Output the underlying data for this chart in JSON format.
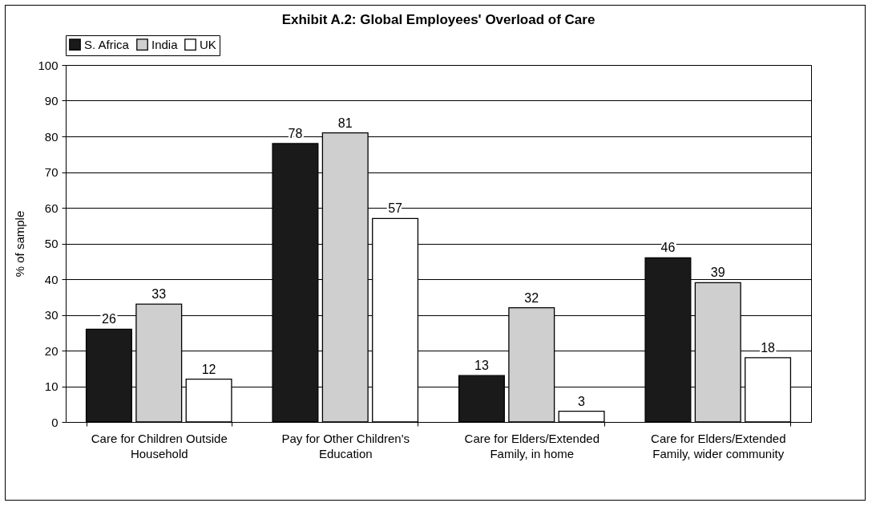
{
  "chart_data": {
    "type": "bar",
    "title": "Exhibit A.2: Global Employees' Overload of Care",
    "ylabel": "% of sample",
    "categories": [
      "Care for Children Outside Household",
      "Pay for Other Children's Education",
      "Care for Elders/Extended Family, in home",
      "Care for Elders/Extended Family, wider community"
    ],
    "series": [
      {
        "name": "S. Africa",
        "color": "#1a1a1a",
        "values": [
          26,
          78,
          13,
          46
        ]
      },
      {
        "name": "India",
        "color": "#cfcfcf",
        "values": [
          33,
          81,
          32,
          39
        ]
      },
      {
        "name": "UK",
        "color": "#ffffff",
        "values": [
          12,
          57,
          3,
          18
        ]
      }
    ],
    "ylim": [
      0,
      100
    ],
    "yticks": [
      0,
      10,
      20,
      30,
      40,
      50,
      60,
      70,
      80,
      90,
      100
    ],
    "grid": "y",
    "legend": "top",
    "data_labels": true
  }
}
